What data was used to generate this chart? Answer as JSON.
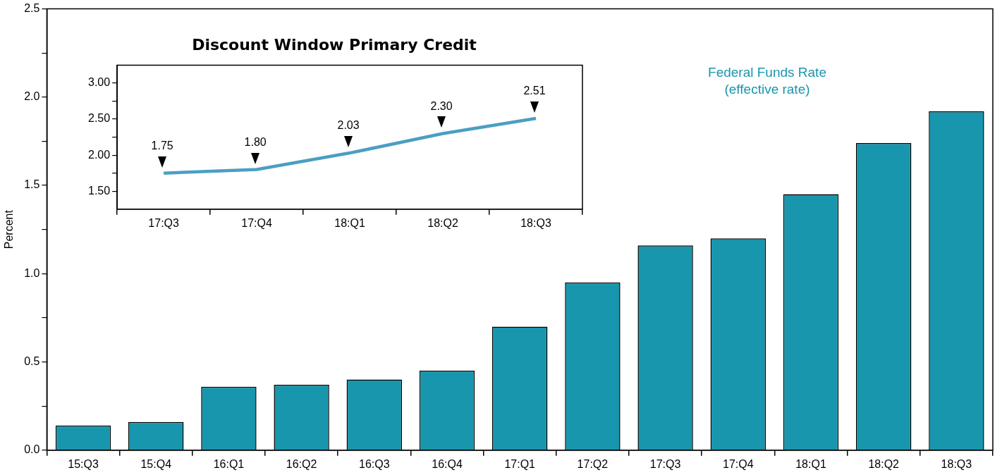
{
  "chart_data": [
    {
      "type": "bar",
      "ylabel": "Percent",
      "categories": [
        "15:Q3",
        "15:Q4",
        "16:Q1",
        "16:Q2",
        "16:Q3",
        "16:Q4",
        "17:Q1",
        "17:Q2",
        "17:Q3",
        "17:Q4",
        "18:Q1",
        "18:Q2",
        "18:Q3"
      ],
      "series": [
        {
          "name": "Federal Funds Rate\n(effective rate)",
          "color": "#1896ad",
          "values": [
            0.14,
            0.16,
            0.36,
            0.37,
            0.4,
            0.45,
            0.7,
            0.95,
            1.16,
            1.2,
            1.45,
            1.74,
            1.92
          ]
        }
      ],
      "ylim": [
        0,
        2.5
      ],
      "yticks": [
        {
          "value": 0,
          "label": "0.0"
        },
        {
          "value": 0.25,
          "label": null
        },
        0.5,
        {
          "value": 0.75,
          "label": null
        },
        {
          "value": 1,
          "label": "1.0"
        },
        {
          "value": 1.25,
          "label": null
        },
        1.5,
        {
          "value": 1.75,
          "label": null
        },
        {
          "value": 2,
          "label": "2.0"
        },
        {
          "value": 2.25,
          "label": null
        },
        2.5
      ],
      "grid": false,
      "legend": "top right"
    },
    {
      "type": "line",
      "title": "Discount Window Primary Credit",
      "categories": [
        "17:Q3",
        "17:Q4",
        "18:Q1",
        "18:Q2",
        "18:Q3"
      ],
      "values": [
        1.75,
        1.8,
        2.03,
        2.3,
        2.51
      ],
      "value_labels": [
        "1.75",
        "1.80",
        "2.03",
        "2.30",
        "2.51"
      ],
      "color": "#4a9fc2",
      "ylim": [
        1.25,
        3.25
      ],
      "yticks": [
        {
          "value": 1.5,
          "label": "1.50"
        },
        {
          "value": 1.75,
          "label": null
        },
        {
          "value": 2,
          "label": "2.00"
        },
        {
          "value": 2.25,
          "label": null
        },
        {
          "value": 2.5,
          "label": "2.50"
        },
        {
          "value": 2.75,
          "label": null
        },
        {
          "value": 3,
          "label": "3.00"
        }
      ],
      "grid": false,
      "marker": "none",
      "line_style": "solid"
    }
  ]
}
